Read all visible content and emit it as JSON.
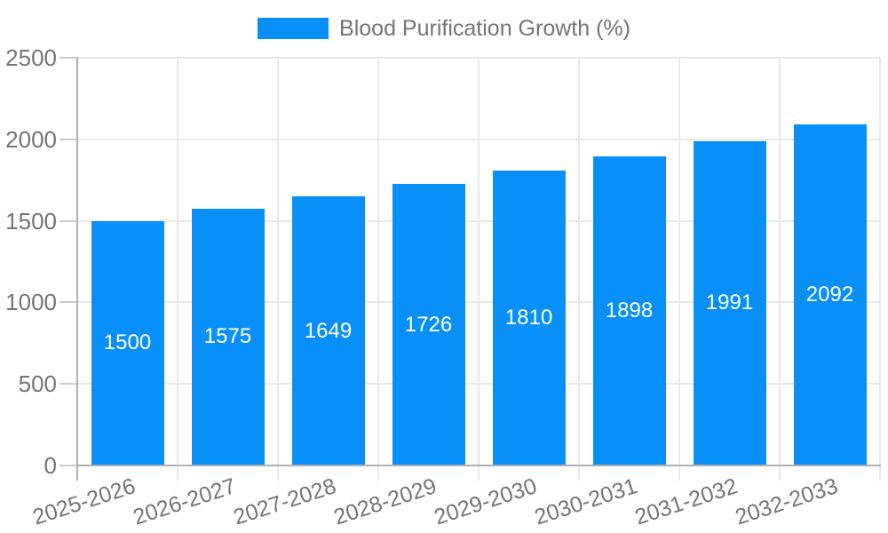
{
  "legend": {
    "items": [
      {
        "label": "Blood Purification Growth (%)",
        "color": "#0990f8"
      }
    ]
  },
  "chart_data": {
    "type": "bar",
    "title": "",
    "xlabel": "",
    "ylabel": "",
    "categories": [
      "2025-2026",
      "2026-2027",
      "2027-2028",
      "2028-2029",
      "2029-2030",
      "2030-2031",
      "2031-2032",
      "2032-2033"
    ],
    "series": [
      {
        "name": "Blood Purification Growth (%)",
        "color": "#0990f8",
        "values": [
          1500,
          1575,
          1649,
          1726,
          1810,
          1898,
          1991,
          2092
        ]
      }
    ],
    "value_labels": [
      1500,
      1575,
      1649,
      1726,
      1810,
      1898,
      1991,
      2092
    ],
    "ylim": [
      0,
      2500
    ],
    "yticks": [
      0,
      500,
      1000,
      1500,
      2000,
      2500
    ],
    "grid": true,
    "legend_position": "top-center",
    "x_label_rotation_deg": -18,
    "colors": {
      "bar": "#0990f8",
      "value_label_text": "#ffffff",
      "axis_label_text": "#757575",
      "legend_text": "#757575",
      "gridline": "#e8e8e8",
      "axis_line": "#b0b0b0",
      "tick": "#cccccc",
      "background": "#ffffff"
    }
  }
}
